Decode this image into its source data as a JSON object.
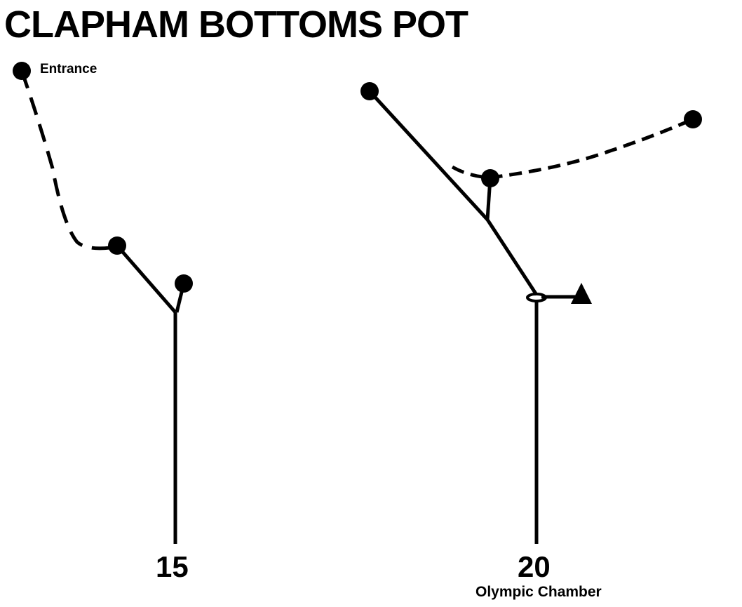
{
  "title": "CLAPHAM BOTTOMS POT",
  "labels": {
    "entrance": "Entrance",
    "pitch1_depth": "15",
    "pitch2_depth": "20",
    "pitch2_name": "Olympic Chamber"
  },
  "colors": {
    "ink": "#000000",
    "background": "#ffffff"
  }
}
